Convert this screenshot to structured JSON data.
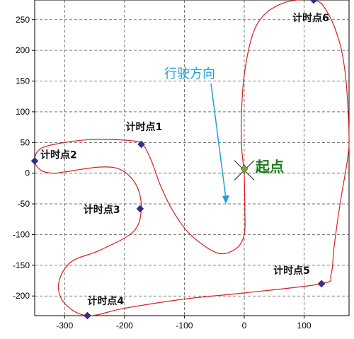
{
  "chart_data": {
    "type": "line",
    "xlim": [
      -350,
      175
    ],
    "ylim": [
      -232,
      282
    ],
    "x_ticks": [
      -300,
      -200,
      -100,
      0,
      100
    ],
    "y_ticks": [
      250,
      200,
      150,
      100,
      50,
      0,
      -50,
      -100,
      -150,
      -200
    ],
    "grid": true,
    "track_color": "#d42020",
    "marker_color": "#3b2a8e",
    "start_marker_color": "#7aa62a",
    "track": [
      [
        0,
        0
      ],
      [
        1,
        -60
      ],
      [
        0,
        -100
      ],
      [
        -14,
        -123
      ],
      [
        -45,
        -130
      ],
      [
        -90,
        -100
      ],
      [
        -120,
        -60
      ],
      [
        -140,
        -20
      ],
      [
        -155,
        20
      ],
      [
        -170,
        47
      ],
      [
        -190,
        53
      ],
      [
        -250,
        55
      ],
      [
        -300,
        50
      ],
      [
        -340,
        40
      ],
      [
        -350,
        20
      ],
      [
        -340,
        5
      ],
      [
        -320,
        0
      ],
      [
        -300,
        2
      ],
      [
        -240,
        10
      ],
      [
        -205,
        5
      ],
      [
        -180,
        -20
      ],
      [
        -172,
        -58
      ],
      [
        -185,
        -95
      ],
      [
        -240,
        -125
      ],
      [
        -290,
        -145
      ],
      [
        -310,
        -180
      ],
      [
        -300,
        -212
      ],
      [
        -262,
        -232
      ],
      [
        -200,
        -220
      ],
      [
        -100,
        -205
      ],
      [
        0,
        -195
      ],
      [
        129,
        -180
      ],
      [
        145,
        -165
      ],
      [
        150,
        -120
      ],
      [
        160,
        -50
      ],
      [
        172,
        20
      ],
      [
        175,
        60
      ],
      [
        170,
        150
      ],
      [
        160,
        210
      ],
      [
        140,
        260
      ],
      [
        116,
        282
      ],
      [
        60,
        275
      ],
      [
        20,
        240
      ],
      [
        0,
        160
      ],
      [
        -5,
        60
      ],
      [
        0,
        0
      ]
    ],
    "points": [
      {
        "label": "计时点1",
        "x": -172,
        "y": 47
      },
      {
        "label": "计时点2",
        "x": -350,
        "y": 20
      },
      {
        "label": "计时点3",
        "x": -174,
        "y": -58
      },
      {
        "label": "计时点4",
        "x": -262,
        "y": -232
      },
      {
        "label": "计时点5",
        "x": 129,
        "y": -180
      },
      {
        "label": "计时点6",
        "x": 116,
        "y": 282
      }
    ],
    "start": {
      "label": "起点",
      "x": 0,
      "y": 7
    },
    "direction_label": "行驶方向"
  }
}
